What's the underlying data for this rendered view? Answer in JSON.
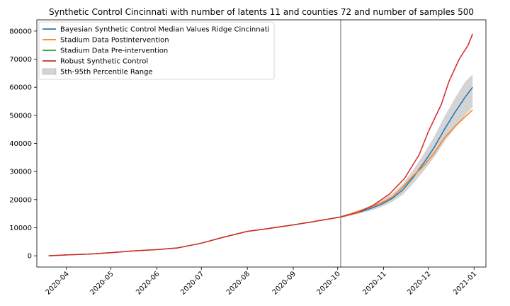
{
  "chart_data": {
    "type": "line",
    "title": "Synthetic Control Cincinnati with number of latents 11 and counties 72 and number of samples 500",
    "xlabel": "",
    "ylabel": "",
    "x_range": [
      "2020-03-12",
      "2021-01-09"
    ],
    "ylim": [
      -4000,
      84000
    ],
    "x_ticks": [
      {
        "date": "2020-04-01",
        "label": "2020-04"
      },
      {
        "date": "2020-05-01",
        "label": "2020-05"
      },
      {
        "date": "2020-06-01",
        "label": "2020-06"
      },
      {
        "date": "2020-07-01",
        "label": "2020-07"
      },
      {
        "date": "2020-08-01",
        "label": "2020-08"
      },
      {
        "date": "2020-09-01",
        "label": "2020-09"
      },
      {
        "date": "2020-10-01",
        "label": "2020-10"
      },
      {
        "date": "2020-11-01",
        "label": "2020-11"
      },
      {
        "date": "2020-12-01",
        "label": "2020-12"
      },
      {
        "date": "2021-01-01",
        "label": "2021-01"
      }
    ],
    "y_ticks": [
      {
        "value": 0,
        "label": "0"
      },
      {
        "value": 10000,
        "label": "10000"
      },
      {
        "value": 20000,
        "label": "20000"
      },
      {
        "value": 30000,
        "label": "30000"
      },
      {
        "value": 40000,
        "label": "40000"
      },
      {
        "value": 50000,
        "label": "50000"
      },
      {
        "value": 60000,
        "label": "60000"
      },
      {
        "value": 70000,
        "label": "70000"
      },
      {
        "value": 80000,
        "label": "80000"
      }
    ],
    "intervention_date": "2020-10-03",
    "legend_position": "upper-left",
    "series": [
      {
        "name": "Bayesian Synthetic Control Median Values Ridge Cincinnati",
        "color": "#1f77b4",
        "points": [
          [
            "2020-10-03",
            13800
          ],
          [
            "2020-10-10",
            14800
          ],
          [
            "2020-10-17",
            15800
          ],
          [
            "2020-10-24",
            17000
          ],
          [
            "2020-10-31",
            18500
          ],
          [
            "2020-11-07",
            20500
          ],
          [
            "2020-11-14",
            23500
          ],
          [
            "2020-11-21",
            28000
          ],
          [
            "2020-11-28",
            33000
          ],
          [
            "2020-12-05",
            38500
          ],
          [
            "2020-12-12",
            45000
          ],
          [
            "2020-12-19",
            51000
          ],
          [
            "2020-12-26",
            56500
          ],
          [
            "2020-12-31",
            60000
          ]
        ]
      },
      {
        "name": "Stadium Data Postintervention",
        "color": "#ff7f0e",
        "points": [
          [
            "2020-10-03",
            13800
          ],
          [
            "2020-10-10",
            15000
          ],
          [
            "2020-10-17",
            16200
          ],
          [
            "2020-10-24",
            17500
          ],
          [
            "2020-10-31",
            19000
          ],
          [
            "2020-11-07",
            21000
          ],
          [
            "2020-11-14",
            24500
          ],
          [
            "2020-11-21",
            28500
          ],
          [
            "2020-11-28",
            32000
          ],
          [
            "2020-12-05",
            36500
          ],
          [
            "2020-12-12",
            42000
          ],
          [
            "2020-12-19",
            46000
          ],
          [
            "2020-12-26",
            49500
          ],
          [
            "2020-12-31",
            52000
          ]
        ]
      },
      {
        "name": "Stadium Data Pre-intervention",
        "color": "#2ca02c",
        "points": [
          [
            "2020-03-20",
            0
          ],
          [
            "2020-04-01",
            300
          ],
          [
            "2020-04-15",
            600
          ],
          [
            "2020-05-01",
            1100
          ],
          [
            "2020-05-15",
            1700
          ],
          [
            "2020-06-01",
            2200
          ],
          [
            "2020-06-15",
            2800
          ],
          [
            "2020-07-01",
            4500
          ],
          [
            "2020-07-15",
            6500
          ],
          [
            "2020-08-01",
            8700
          ],
          [
            "2020-08-15",
            9700
          ],
          [
            "2020-09-01",
            11000
          ],
          [
            "2020-09-15",
            12200
          ],
          [
            "2020-10-03",
            13800
          ]
        ]
      },
      {
        "name": "Robust Synthetic Control",
        "color": "#d62728",
        "points": [
          [
            "2020-03-20",
            0
          ],
          [
            "2020-04-01",
            300
          ],
          [
            "2020-04-15",
            600
          ],
          [
            "2020-05-01",
            1100
          ],
          [
            "2020-05-15",
            1700
          ],
          [
            "2020-06-01",
            2200
          ],
          [
            "2020-06-15",
            2800
          ],
          [
            "2020-07-01",
            4500
          ],
          [
            "2020-07-15",
            6500
          ],
          [
            "2020-08-01",
            8700
          ],
          [
            "2020-08-15",
            9700
          ],
          [
            "2020-09-01",
            11000
          ],
          [
            "2020-09-15",
            12200
          ],
          [
            "2020-10-03",
            13800
          ],
          [
            "2020-10-15",
            15500
          ],
          [
            "2020-10-25",
            18000
          ],
          [
            "2020-11-05",
            22000
          ],
          [
            "2020-11-15",
            27500
          ],
          [
            "2020-11-25",
            36000
          ],
          [
            "2020-12-01",
            44000
          ],
          [
            "2020-12-10",
            54000
          ],
          [
            "2020-12-15",
            62000
          ],
          [
            "2020-12-22",
            70000
          ],
          [
            "2020-12-28",
            75000
          ],
          [
            "2020-12-31",
            79000
          ]
        ]
      }
    ],
    "band": {
      "name": "5th-95th Percentile Range",
      "color": "#a0a0a0",
      "points": [
        [
          "2020-10-03",
          13500,
          14200
        ],
        [
          "2020-10-10",
          14300,
          15300
        ],
        [
          "2020-10-17",
          15200,
          16600
        ],
        [
          "2020-10-24",
          16200,
          18000
        ],
        [
          "2020-10-31",
          17500,
          19800
        ],
        [
          "2020-11-07",
          19300,
          22200
        ],
        [
          "2020-11-14",
          21800,
          25600
        ],
        [
          "2020-11-21",
          25800,
          30600
        ],
        [
          "2020-11-28",
          30200,
          36200
        ],
        [
          "2020-12-05",
          35000,
          42300
        ],
        [
          "2020-12-12",
          40500,
          49500
        ],
        [
          "2020-12-19",
          45500,
          56000
        ],
        [
          "2020-12-26",
          50000,
          62000
        ],
        [
          "2020-12-31",
          53000,
          64500
        ]
      ]
    }
  }
}
